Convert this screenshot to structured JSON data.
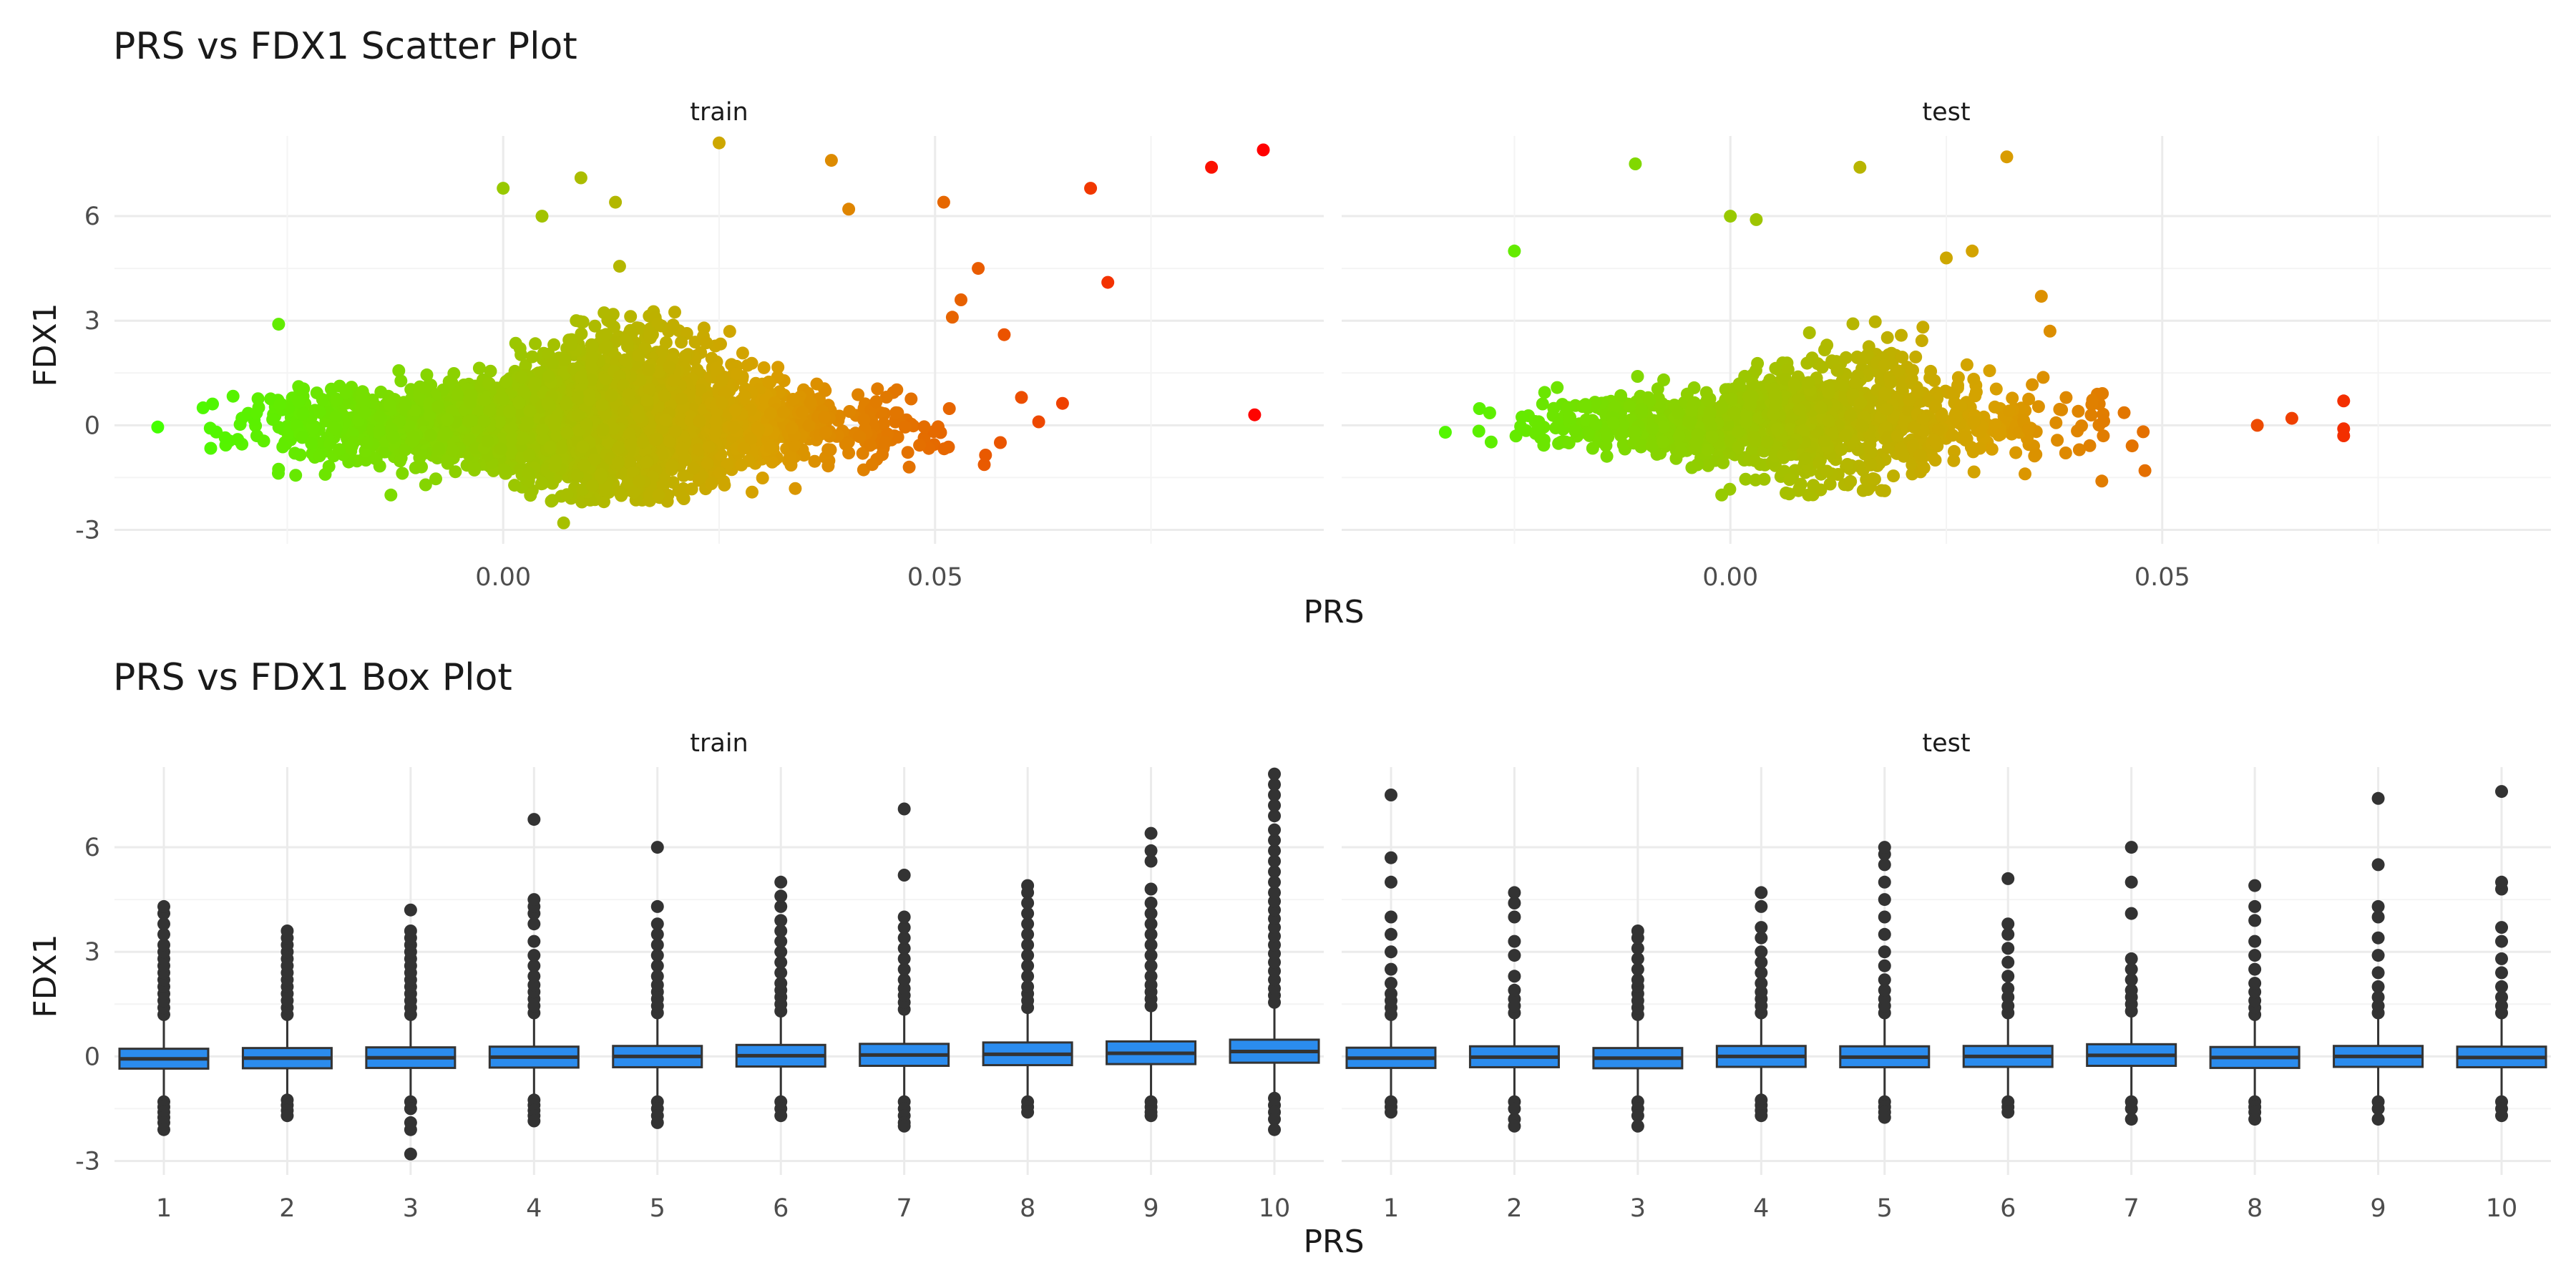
{
  "colors": {
    "low": "#44ff00",
    "mid": "#d8a000",
    "high": "#ff0000",
    "box_fill": "#2b8cee",
    "box_line": "#333333",
    "outlier": "#333333",
    "grid_major": "#ebebeb",
    "grid_minor": "#f4f4f4"
  },
  "chart_data": [
    {
      "type": "scatter",
      "title": "PRS vs FDX1 Scatter Plot",
      "xlabel": "PRS",
      "ylabel": "FDX1",
      "grid": true,
      "legend": "none",
      "color_scale": "PRS value, green (low) to orange to red (high)",
      "xlim": [
        -0.045,
        0.095
      ],
      "ylim": [
        -3.4,
        8.3
      ],
      "x_ticks": [
        "0.00",
        "0.05"
      ],
      "x_tick_values": [
        0.0,
        0.05
      ],
      "y_ticks": [
        "-3",
        "0",
        "3",
        "6"
      ],
      "y_tick_values": [
        -3,
        0,
        3,
        6
      ],
      "panels": [
        {
          "name": "train",
          "notable_points": [
            [
              -0.04,
              -0.05
            ],
            [
              -0.026,
              2.9
            ],
            [
              0.0,
              6.8
            ],
            [
              0.0045,
              6.0
            ],
            [
              0.009,
              7.1
            ],
            [
              0.013,
              6.4
            ],
            [
              0.025,
              8.1
            ],
            [
              0.038,
              7.6
            ],
            [
              0.04,
              6.2
            ],
            [
              0.051,
              6.4
            ],
            [
              0.052,
              3.1
            ],
            [
              0.053,
              3.6
            ],
            [
              0.055,
              4.5
            ],
            [
              0.058,
              2.6
            ],
            [
              0.068,
              6.8
            ],
            [
              0.07,
              4.1
            ],
            [
              0.082,
              7.4
            ],
            [
              0.088,
              7.9
            ],
            [
              0.087,
              0.3
            ],
            [
              0.007,
              -2.8
            ],
            [
              0.018,
              -2.0
            ],
            [
              -0.013,
              -2.0
            ],
            [
              0.047,
              -1.2
            ],
            [
              0.06,
              0.8
            ],
            [
              0.062,
              0.1
            ]
          ],
          "cluster": {
            "x_range": [
              -0.035,
              0.065
            ],
            "center_x": 0.008,
            "spread_x": 0.015,
            "y_sd": 0.9,
            "y_range": [
              -2.2,
              6.0
            ],
            "n_points": 3500
          }
        },
        {
          "name": "test",
          "notable_points": [
            [
              -0.033,
              -0.2
            ],
            [
              -0.025,
              5.0
            ],
            [
              -0.011,
              7.5
            ],
            [
              0.015,
              7.4
            ],
            [
              0.032,
              7.7
            ],
            [
              0.0,
              6.0
            ],
            [
              0.003,
              5.9
            ],
            [
              0.028,
              5.0
            ],
            [
              0.025,
              4.8
            ],
            [
              0.036,
              3.7
            ],
            [
              0.037,
              2.7
            ],
            [
              0.043,
              -1.6
            ],
            [
              0.048,
              -1.3
            ],
            [
              0.061,
              0.0
            ],
            [
              0.065,
              0.2
            ],
            [
              0.071,
              0.7
            ],
            [
              0.071,
              -0.1
            ],
            [
              0.071,
              -0.3
            ],
            [
              -0.001,
              -2.0
            ],
            [
              0.008,
              -1.8
            ]
          ],
          "cluster": {
            "x_range": [
              -0.03,
              0.06
            ],
            "center_x": 0.008,
            "spread_x": 0.014,
            "y_sd": 0.8,
            "y_range": [
              -2.0,
              5.0
            ],
            "n_points": 1200
          }
        }
      ]
    },
    {
      "type": "box",
      "title": "PRS vs FDX1 Box Plot",
      "xlabel": "PRS",
      "ylabel": "FDX1",
      "grid": true,
      "legend": "none",
      "categories": [
        "1",
        "2",
        "3",
        "4",
        "5",
        "6",
        "7",
        "8",
        "9",
        "10"
      ],
      "ylim": [
        -3.4,
        8.3
      ],
      "y_ticks": [
        "-3",
        "0",
        "3",
        "6"
      ],
      "y_tick_values": [
        -3,
        0,
        3,
        6
      ],
      "panels": [
        {
          "name": "train",
          "boxes": [
            {
              "q1": -0.35,
              "median": -0.07,
              "q3": 0.22,
              "lower": -1.2,
              "upper": 1.05,
              "outliers_low": [
                -1.3,
                -1.45,
                -1.6,
                -1.75,
                -1.9,
                -2.1
              ],
              "outliers_high": [
                1.2,
                1.4,
                1.6,
                1.8,
                2.0,
                2.2,
                2.4,
                2.6,
                2.8,
                3.0,
                3.2,
                3.5,
                3.8,
                4.1,
                4.3
              ]
            },
            {
              "q1": -0.34,
              "median": -0.05,
              "q3": 0.24,
              "lower": -1.15,
              "upper": 1.1,
              "outliers_low": [
                -1.25,
                -1.4,
                -1.55,
                -1.7
              ],
              "outliers_high": [
                1.2,
                1.4,
                1.6,
                1.8,
                2.0,
                2.2,
                2.4,
                2.6,
                2.8,
                3.0,
                3.2,
                3.4,
                3.6
              ]
            },
            {
              "q1": -0.33,
              "median": -0.04,
              "q3": 0.26,
              "lower": -1.15,
              "upper": 1.1,
              "outliers_low": [
                -1.3,
                -1.5,
                -1.9,
                -2.1,
                -2.8
              ],
              "outliers_high": [
                1.2,
                1.4,
                1.6,
                1.8,
                2.0,
                2.2,
                2.4,
                2.6,
                2.8,
                3.0,
                3.2,
                3.4,
                3.6,
                4.2
              ]
            },
            {
              "q1": -0.32,
              "median": -0.02,
              "q3": 0.28,
              "lower": -1.15,
              "upper": 1.15,
              "outliers_low": [
                -1.25,
                -1.4,
                -1.55,
                -1.7,
                -1.85
              ],
              "outliers_high": [
                1.25,
                1.45,
                1.65,
                1.85,
                2.05,
                2.3,
                2.6,
                2.9,
                3.3,
                3.8,
                4.1,
                4.3,
                4.5,
                6.8
              ]
            },
            {
              "q1": -0.31,
              "median": 0.0,
              "q3": 0.3,
              "lower": -1.15,
              "upper": 1.15,
              "outliers_low": [
                -1.3,
                -1.5,
                -1.7,
                -1.9
              ],
              "outliers_high": [
                1.25,
                1.45,
                1.65,
                1.85,
                2.05,
                2.3,
                2.6,
                2.9,
                3.2,
                3.5,
                3.8,
                4.3,
                6.0
              ]
            },
            {
              "q1": -0.29,
              "median": 0.02,
              "q3": 0.33,
              "lower": -1.15,
              "upper": 1.2,
              "outliers_low": [
                -1.3,
                -1.5,
                -1.7
              ],
              "outliers_high": [
                1.3,
                1.5,
                1.7,
                1.9,
                2.1,
                2.4,
                2.7,
                3.0,
                3.3,
                3.6,
                3.9,
                4.3,
                4.6,
                5.0
              ]
            },
            {
              "q1": -0.27,
              "median": 0.04,
              "q3": 0.36,
              "lower": -1.15,
              "upper": 1.25,
              "outliers_low": [
                -1.3,
                -1.5,
                -1.7,
                -1.9,
                -2.0
              ],
              "outliers_high": [
                1.35,
                1.55,
                1.75,
                1.95,
                2.2,
                2.5,
                2.8,
                3.1,
                3.4,
                3.7,
                4.0,
                5.2,
                7.1
              ]
            },
            {
              "q1": -0.25,
              "median": 0.06,
              "q3": 0.4,
              "lower": -1.15,
              "upper": 1.3,
              "outliers_low": [
                -1.3,
                -1.45,
                -1.6
              ],
              "outliers_high": [
                1.4,
                1.6,
                1.8,
                2.0,
                2.3,
                2.6,
                2.9,
                3.2,
                3.5,
                3.8,
                4.1,
                4.4,
                4.7,
                4.9
              ]
            },
            {
              "q1": -0.22,
              "median": 0.09,
              "q3": 0.43,
              "lower": -1.15,
              "upper": 1.35,
              "outliers_low": [
                -1.3,
                -1.45,
                -1.6,
                -1.7
              ],
              "outliers_high": [
                1.45,
                1.65,
                1.85,
                2.05,
                2.3,
                2.6,
                2.9,
                3.2,
                3.5,
                3.8,
                4.1,
                4.4,
                4.8,
                5.6,
                5.9,
                6.4
              ]
            },
            {
              "q1": -0.18,
              "median": 0.14,
              "q3": 0.48,
              "lower": -1.1,
              "upper": 1.45,
              "outliers_low": [
                -1.2,
                -1.4,
                -1.6,
                -1.8,
                -2.1
              ],
              "outliers_high": [
                1.55,
                1.75,
                1.95,
                2.2,
                2.45,
                2.7,
                2.95,
                3.2,
                3.45,
                3.7,
                3.95,
                4.2,
                4.45,
                4.7,
                5.0,
                5.3,
                5.6,
                5.9,
                6.2,
                6.5,
                6.9,
                7.2,
                7.5,
                7.8,
                8.1
              ]
            }
          ]
        },
        {
          "name": "test",
          "boxes": [
            {
              "q1": -0.33,
              "median": -0.05,
              "q3": 0.25,
              "lower": -1.15,
              "upper": 1.1,
              "outliers_low": [
                -1.3,
                -1.45,
                -1.6
              ],
              "outliers_high": [
                1.2,
                1.4,
                1.6,
                1.8,
                2.1,
                2.5,
                3.0,
                3.5,
                4.0,
                5.0,
                5.7,
                7.5
              ]
            },
            {
              "q1": -0.31,
              "median": -0.02,
              "q3": 0.29,
              "lower": -1.15,
              "upper": 1.15,
              "outliers_low": [
                -1.3,
                -1.5,
                -1.8,
                -2.0
              ],
              "outliers_high": [
                1.25,
                1.45,
                1.65,
                1.9,
                2.3,
                2.9,
                3.3,
                4.0,
                4.4,
                4.7
              ]
            },
            {
              "q1": -0.34,
              "median": -0.05,
              "q3": 0.24,
              "lower": -1.15,
              "upper": 1.1,
              "outliers_low": [
                -1.3,
                -1.5,
                -1.7,
                -2.0
              ],
              "outliers_high": [
                1.2,
                1.4,
                1.6,
                1.8,
                2.0,
                2.2,
                2.5,
                2.8,
                3.1,
                3.4,
                3.6
              ]
            },
            {
              "q1": -0.3,
              "median": 0.0,
              "q3": 0.3,
              "lower": -1.15,
              "upper": 1.15,
              "outliers_low": [
                -1.25,
                -1.4,
                -1.55,
                -1.7
              ],
              "outliers_high": [
                1.25,
                1.45,
                1.65,
                1.85,
                2.1,
                2.4,
                2.7,
                3.0,
                3.4,
                3.7,
                4.3,
                4.7
              ]
            },
            {
              "q1": -0.31,
              "median": -0.02,
              "q3": 0.29,
              "lower": -1.15,
              "upper": 1.15,
              "outliers_low": [
                -1.3,
                -1.45,
                -1.6,
                -1.75
              ],
              "outliers_high": [
                1.25,
                1.45,
                1.65,
                1.9,
                2.2,
                2.6,
                3.0,
                3.5,
                4.0,
                4.5,
                5.0,
                5.5,
                5.8,
                6.0
              ]
            },
            {
              "q1": -0.3,
              "median": 0.0,
              "q3": 0.3,
              "lower": -1.15,
              "upper": 1.15,
              "outliers_low": [
                -1.3,
                -1.45,
                -1.6
              ],
              "outliers_high": [
                1.25,
                1.45,
                1.7,
                1.95,
                2.3,
                2.7,
                3.1,
                3.5,
                3.8,
                5.1
              ]
            },
            {
              "q1": -0.27,
              "median": 0.03,
              "q3": 0.35,
              "lower": -1.15,
              "upper": 1.2,
              "outliers_low": [
                -1.3,
                -1.5,
                -1.8
              ],
              "outliers_high": [
                1.3,
                1.5,
                1.7,
                1.9,
                2.2,
                2.5,
                2.8,
                4.1,
                5.0,
                6.0
              ]
            },
            {
              "q1": -0.33,
              "median": -0.03,
              "q3": 0.27,
              "lower": -1.15,
              "upper": 1.1,
              "outliers_low": [
                -1.3,
                -1.45,
                -1.6,
                -1.8
              ],
              "outliers_high": [
                1.2,
                1.4,
                1.6,
                1.85,
                2.1,
                2.5,
                2.9,
                3.3,
                3.9,
                4.3,
                4.9
              ]
            },
            {
              "q1": -0.3,
              "median": 0.0,
              "q3": 0.3,
              "lower": -1.15,
              "upper": 1.15,
              "outliers_low": [
                -1.3,
                -1.5,
                -1.8
              ],
              "outliers_high": [
                1.25,
                1.45,
                1.7,
                2.0,
                2.4,
                2.9,
                3.4,
                4.0,
                4.3,
                5.5,
                7.4
              ]
            },
            {
              "q1": -0.31,
              "median": -0.03,
              "q3": 0.28,
              "lower": -1.15,
              "upper": 1.15,
              "outliers_low": [
                -1.3,
                -1.5,
                -1.7
              ],
              "outliers_high": [
                1.25,
                1.45,
                1.7,
                2.0,
                2.4,
                2.8,
                3.3,
                3.7,
                4.8,
                5.0,
                7.6
              ]
            }
          ]
        }
      ]
    }
  ]
}
